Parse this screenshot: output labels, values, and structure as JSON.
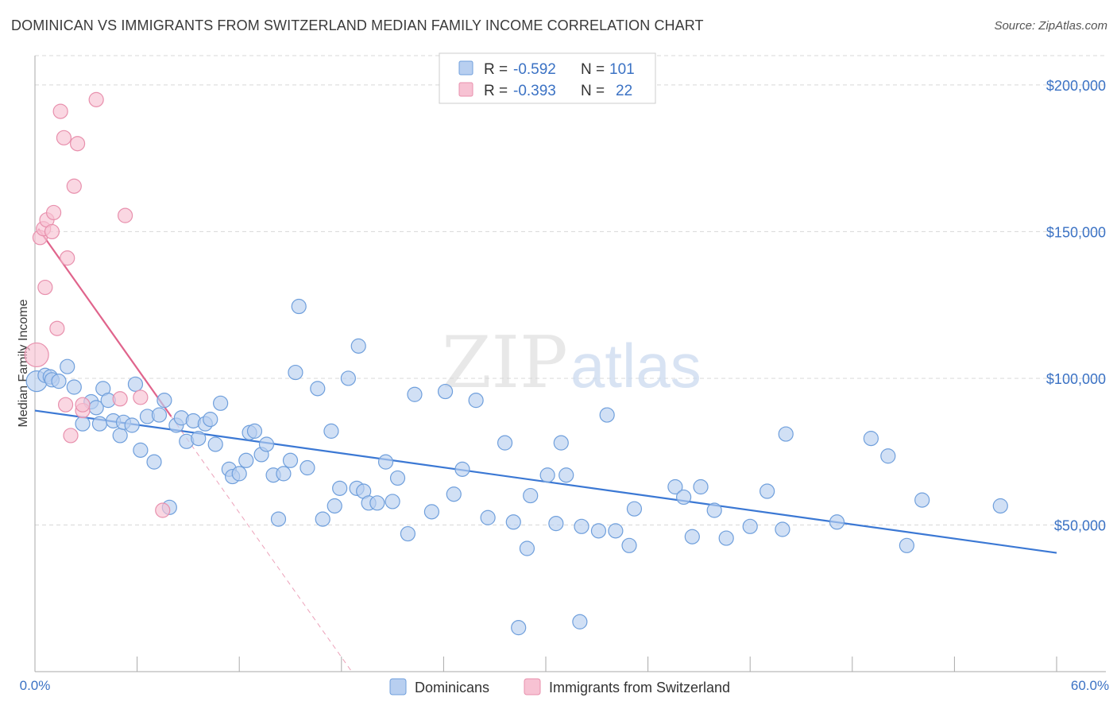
{
  "title": "DOMINICAN VS IMMIGRANTS FROM SWITZERLAND MEDIAN FAMILY INCOME CORRELATION CHART",
  "source": "Source: ZipAtlas.com",
  "watermark": {
    "zip": "ZIP",
    "atlas": "atlas"
  },
  "colors": {
    "blue_fill": "#b8cff0",
    "blue_stroke": "#6f9fdc",
    "blue_line": "#3b78d4",
    "pink_fill": "#f7c2d3",
    "pink_stroke": "#e890ad",
    "pink_line": "#e0648c",
    "tick_text": "#3b72c4",
    "grid": "#d8d8d8"
  },
  "legend": {
    "row1": {
      "r_label": "R = ",
      "r_value": "-0.592",
      "n_label": "N = ",
      "n_value": "101"
    },
    "row2": {
      "r_label": "R = ",
      "r_value": "-0.393",
      "n_label": "N = ",
      "n_value": "22"
    }
  },
  "chart_data": {
    "type": "scatter",
    "title": "DOMINICAN VS IMMIGRANTS FROM SWITZERLAND MEDIAN FAMILY INCOME CORRELATION CHART",
    "xlabel": "",
    "ylabel": "Median Family Income",
    "xlim": [
      0,
      60
    ],
    "ylim": [
      0,
      210000
    ],
    "x_tick_labels": [
      "0.0%",
      "60.0%"
    ],
    "y_ticks": [
      50000,
      100000,
      150000,
      200000
    ],
    "y_tick_labels": [
      "$50,000",
      "$100,000",
      "$150,000",
      "$200,000"
    ],
    "grid": true,
    "legend_position": "top-center",
    "series": [
      {
        "name": "Dominicans",
        "color": "#6f9fdc",
        "trend": {
          "x": [
            0,
            60
          ],
          "y": [
            89000,
            40500
          ]
        },
        "points": [
          [
            0.1,
            99000
          ],
          [
            0.6,
            101000
          ],
          [
            0.9,
            100500
          ],
          [
            1.0,
            99500
          ],
          [
            1.4,
            99000
          ],
          [
            1.9,
            104000
          ],
          [
            2.3,
            97000
          ],
          [
            2.8,
            84500
          ],
          [
            3.3,
            92000
          ],
          [
            3.6,
            90000
          ],
          [
            3.8,
            84500
          ],
          [
            4.0,
            96500
          ],
          [
            4.3,
            92500
          ],
          [
            4.6,
            85500
          ],
          [
            5.0,
            80500
          ],
          [
            5.2,
            85000
          ],
          [
            5.7,
            84000
          ],
          [
            5.9,
            98000
          ],
          [
            6.2,
            75500
          ],
          [
            6.6,
            87000
          ],
          [
            7.0,
            71500
          ],
          [
            7.3,
            87500
          ],
          [
            7.6,
            92500
          ],
          [
            7.9,
            56000
          ],
          [
            8.3,
            84000
          ],
          [
            8.6,
            86500
          ],
          [
            8.9,
            78500
          ],
          [
            9.3,
            85500
          ],
          [
            9.6,
            79500
          ],
          [
            10.0,
            84500
          ],
          [
            10.3,
            86000
          ],
          [
            10.6,
            77500
          ],
          [
            10.9,
            91500
          ],
          [
            11.4,
            69000
          ],
          [
            11.6,
            66500
          ],
          [
            12.0,
            67500
          ],
          [
            12.4,
            72000
          ],
          [
            12.6,
            81500
          ],
          [
            12.9,
            82000
          ],
          [
            13.3,
            74000
          ],
          [
            13.6,
            77500
          ],
          [
            14.0,
            67000
          ],
          [
            14.3,
            52000
          ],
          [
            14.6,
            67500
          ],
          [
            15.0,
            72000
          ],
          [
            15.3,
            102000
          ],
          [
            15.5,
            124500
          ],
          [
            16.0,
            69500
          ],
          [
            16.6,
            96500
          ],
          [
            16.9,
            52000
          ],
          [
            17.4,
            82000
          ],
          [
            17.6,
            56500
          ],
          [
            17.9,
            62500
          ],
          [
            18.4,
            100000
          ],
          [
            18.9,
            62500
          ],
          [
            19.0,
            111000
          ],
          [
            19.3,
            61500
          ],
          [
            19.6,
            57500
          ],
          [
            20.1,
            57500
          ],
          [
            20.6,
            71500
          ],
          [
            21.0,
            58000
          ],
          [
            21.3,
            66000
          ],
          [
            21.9,
            47000
          ],
          [
            22.3,
            94500
          ],
          [
            23.3,
            54500
          ],
          [
            24.1,
            95500
          ],
          [
            24.6,
            60500
          ],
          [
            25.1,
            69000
          ],
          [
            25.9,
            92500
          ],
          [
            26.6,
            52500
          ],
          [
            27.6,
            78000
          ],
          [
            28.1,
            51000
          ],
          [
            28.9,
            42000
          ],
          [
            29.1,
            60000
          ],
          [
            30.1,
            67000
          ],
          [
            30.6,
            50500
          ],
          [
            30.9,
            78000
          ],
          [
            31.2,
            67000
          ],
          [
            32.1,
            49500
          ],
          [
            33.1,
            48000
          ],
          [
            33.6,
            87500
          ],
          [
            34.1,
            48000
          ],
          [
            34.9,
            43000
          ],
          [
            35.2,
            55500
          ],
          [
            37.6,
            63000
          ],
          [
            38.1,
            59500
          ],
          [
            38.6,
            46000
          ],
          [
            39.1,
            63000
          ],
          [
            39.9,
            55000
          ],
          [
            40.6,
            45500
          ],
          [
            42.0,
            49500
          ],
          [
            43.0,
            61500
          ],
          [
            43.9,
            48500
          ],
          [
            44.1,
            81000
          ],
          [
            47.1,
            51000
          ],
          [
            49.1,
            79500
          ],
          [
            50.1,
            73500
          ],
          [
            51.2,
            43000
          ],
          [
            52.1,
            58500
          ],
          [
            56.7,
            56500
          ],
          [
            28.4,
            15000
          ],
          [
            32.0,
            17000
          ]
        ]
      },
      {
        "name": "Immigrants from Switzerland",
        "color": "#e890ad",
        "trend": {
          "x": [
            0.2,
            8.0
          ],
          "y": [
            151000,
            87000
          ]
        },
        "points": [
          [
            0.1,
            108000
          ],
          [
            0.3,
            148000
          ],
          [
            0.5,
            151000
          ],
          [
            0.6,
            131000
          ],
          [
            0.7,
            154000
          ],
          [
            1.0,
            150000
          ],
          [
            1.1,
            156500
          ],
          [
            1.3,
            117000
          ],
          [
            1.5,
            191000
          ],
          [
            1.7,
            182000
          ],
          [
            1.8,
            91000
          ],
          [
            1.9,
            141000
          ],
          [
            2.1,
            80500
          ],
          [
            2.3,
            165500
          ],
          [
            2.5,
            180000
          ],
          [
            2.8,
            89000
          ],
          [
            2.8,
            91000
          ],
          [
            3.6,
            195000
          ],
          [
            5.0,
            93000
          ],
          [
            5.3,
            155500
          ],
          [
            6.2,
            93500
          ],
          [
            7.5,
            55000
          ]
        ]
      }
    ]
  }
}
